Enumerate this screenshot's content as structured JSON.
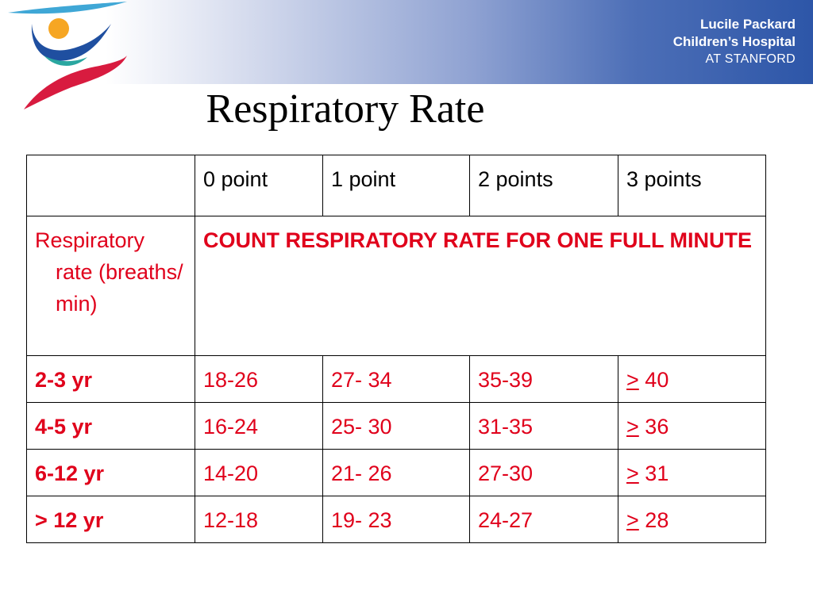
{
  "header": {
    "brand_line1": "Lucile Packard",
    "brand_line2": "Children’s Hospital",
    "brand_line3": "AT STANFORD",
    "logo_icon": "hospital-figure-logo-icon"
  },
  "title": "Respiratory Rate",
  "colors": {
    "accent_red": "#e0001b",
    "band_blue": "#2d56a8"
  },
  "table": {
    "headers": [
      "",
      "0 point",
      "1 point",
      "2 points",
      "3 points"
    ],
    "row_label": "Respiratory rate (breaths/ min)",
    "instruction": "COUNT RESPIRATORY RATE FOR ONE FULL MINUTE",
    "rows": [
      {
        "age": "2-3 yr",
        "v0": "18-26",
        "v1": "27- 34",
        "v2": "35-39",
        "ge": ">",
        "v3": "40"
      },
      {
        "age": "4-5 yr",
        "v0": "16-24",
        "v1": "25- 30",
        "v2": "31-35",
        "ge": ">",
        "v3": "36"
      },
      {
        "age": "6-12 yr",
        "v0": "14-20",
        "v1": "21- 26",
        "v2": "27-30",
        "ge": ">",
        "v3": "31"
      },
      {
        "age": "> 12 yr",
        "v0": "12-18",
        "v1": "19- 23",
        "v2": "24-27",
        "ge": ">",
        "v3": "28"
      }
    ]
  }
}
